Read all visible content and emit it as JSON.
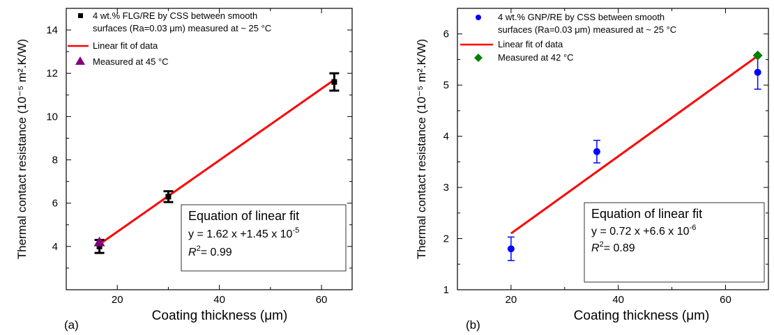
{
  "chart_data": [
    {
      "type": "scatter",
      "panel_label": "(a)",
      "xlabel": "Coating thickness (μm)",
      "ylabel": "Thermal contact resistance (10⁻⁵ m².K/W)",
      "xlim": [
        10,
        66
      ],
      "ylim": [
        2,
        15
      ],
      "xticks": [
        20,
        40,
        60
      ],
      "yticks": [
        4,
        6,
        8,
        10,
        12,
        14
      ],
      "series": [
        {
          "name": "4 wt.% FLG/RE by CSS between smooth surfaces (Ra=0.03 μm) measured at ~ 25 °C",
          "marker": "square",
          "color": "#000000",
          "x": [
            16.5,
            30,
            62.5
          ],
          "y": [
            4.0,
            6.3,
            11.6
          ],
          "err": [
            0.3,
            0.25,
            0.4
          ]
        },
        {
          "name": "Linear fit of data",
          "kind": "line",
          "color": "#ff0000",
          "x": [
            16.5,
            62.5
          ],
          "y": [
            4.1,
            11.7
          ]
        },
        {
          "name": "Measured at 45 °C",
          "marker": "triangle",
          "color": "#800080",
          "x": [
            16.5
          ],
          "y": [
            4.2
          ]
        }
      ],
      "equation_box": {
        "title": "Equation of linear fit",
        "line1": "y = 1.62 x +1.45 x 10",
        "line1_exp": "-5",
        "r2_value": "= 0.99"
      }
    },
    {
      "type": "scatter",
      "panel_label": "(b)",
      "xlabel": "Coating thickness (μm)",
      "ylabel": "Thermal contact resistance (10⁻⁵ m².K/W)",
      "xlim": [
        10,
        68
      ],
      "ylim": [
        1,
        6.5
      ],
      "xticks": [
        20,
        40,
        60
      ],
      "yticks": [
        1,
        2,
        3,
        4,
        5,
        6
      ],
      "series": [
        {
          "name": "4 wt.% GNP/RE by CSS between smooth surfaces (Ra=0.03 μm) measured at ~ 25 °C",
          "marker": "circle",
          "color": "#0000ff",
          "x": [
            20,
            36,
            66
          ],
          "y": [
            1.8,
            3.7,
            5.25
          ],
          "err": [
            0.23,
            0.22,
            0.33
          ]
        },
        {
          "name": "Linear fit of data",
          "kind": "line",
          "color": "#ff0000",
          "x": [
            20,
            66
          ],
          "y": [
            2.1,
            5.57
          ]
        },
        {
          "name": "Measured at 42 °C",
          "marker": "diamond",
          "color": "#008000",
          "x": [
            66
          ],
          "y": [
            5.58
          ]
        }
      ],
      "equation_box": {
        "title": "Equation of linear fit",
        "line1": "y = 0.72 x +6.6 x 10",
        "line1_exp": "-6",
        "r2_value": "= 0.89"
      }
    }
  ]
}
